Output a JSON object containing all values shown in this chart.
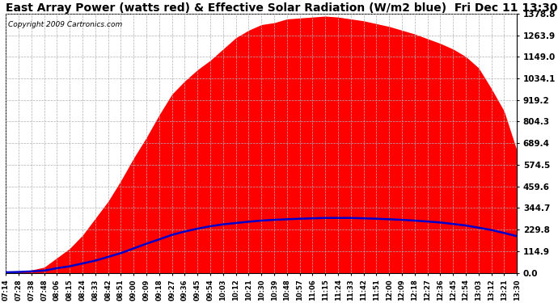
{
  "title": "East Array Power (watts red) & Effective Solar Radiation (W/m2 blue)  Fri Dec 11 13:30",
  "copyright": "Copyright 2009 Cartronics.com",
  "ylabel_right_ticks": [
    0.0,
    114.9,
    229.8,
    344.7,
    459.6,
    574.5,
    689.4,
    804.3,
    919.2,
    1034.1,
    1149.0,
    1263.9,
    1378.8
  ],
  "ymax": 1378.8,
  "ymin": 0.0,
  "background_color": "#ffffff",
  "plot_bg_color": "#ffffff",
  "grid_color": "#b0b0b0",
  "fill_color": "#ff0000",
  "line_color": "#0000cc",
  "title_fontsize": 10,
  "x_labels": [
    "07:14",
    "07:28",
    "07:38",
    "07:48",
    "08:06",
    "08:15",
    "08:24",
    "08:33",
    "08:42",
    "08:51",
    "09:00",
    "09:09",
    "09:18",
    "09:27",
    "09:36",
    "09:45",
    "09:54",
    "10:03",
    "10:12",
    "10:21",
    "10:30",
    "10:39",
    "10:48",
    "10:57",
    "11:06",
    "11:15",
    "11:24",
    "11:33",
    "11:42",
    "11:51",
    "12:00",
    "12:09",
    "12:18",
    "12:27",
    "12:36",
    "12:45",
    "12:54",
    "13:03",
    "13:12",
    "13:21",
    "13:30"
  ],
  "power_values": [
    0,
    5,
    15,
    30,
    80,
    130,
    200,
    290,
    380,
    490,
    610,
    720,
    840,
    950,
    1020,
    1080,
    1130,
    1190,
    1250,
    1290,
    1320,
    1330,
    1350,
    1355,
    1360,
    1365,
    1360,
    1350,
    1340,
    1325,
    1310,
    1290,
    1270,
    1245,
    1220,
    1190,
    1150,
    1090,
    980,
    860,
    650
  ],
  "radiation_values": [
    3,
    5,
    8,
    12,
    25,
    35,
    50,
    65,
    85,
    105,
    130,
    155,
    178,
    202,
    220,
    235,
    248,
    258,
    265,
    272,
    278,
    282,
    285,
    288,
    290,
    292,
    292,
    292,
    290,
    288,
    285,
    282,
    278,
    273,
    268,
    260,
    252,
    240,
    228,
    212,
    195
  ]
}
